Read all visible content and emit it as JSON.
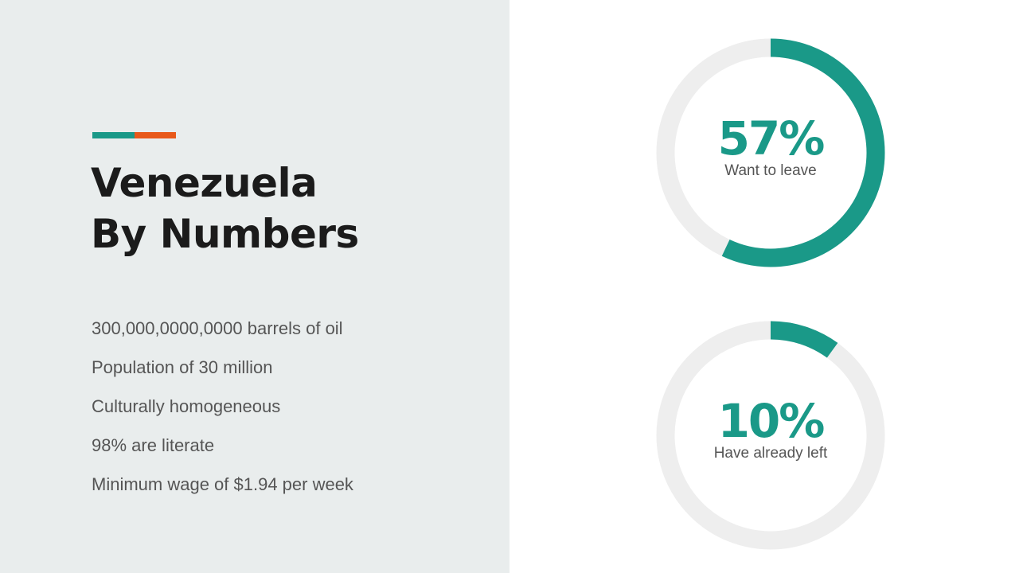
{
  "title": {
    "line1": "Venezuela",
    "line2": "By Numbers"
  },
  "facts": [
    "300,000,0000,0000 barrels of oil",
    "Population of 30 million",
    "Culturally homogeneous",
    "98% are literate",
    "Minimum wage of $1.94 per week"
  ],
  "gauges": [
    {
      "value_text": "57%",
      "label": "Want to leave",
      "fraction": 0.57
    },
    {
      "value_text": "10%",
      "label": "Have already left",
      "fraction": 0.1
    }
  ],
  "colors": {
    "panel": "#e9eded",
    "teal": "#1a9988",
    "orange": "#e8591a",
    "track": "#eeeeee",
    "title": "#1b1b1b",
    "body_text": "#555555"
  }
}
